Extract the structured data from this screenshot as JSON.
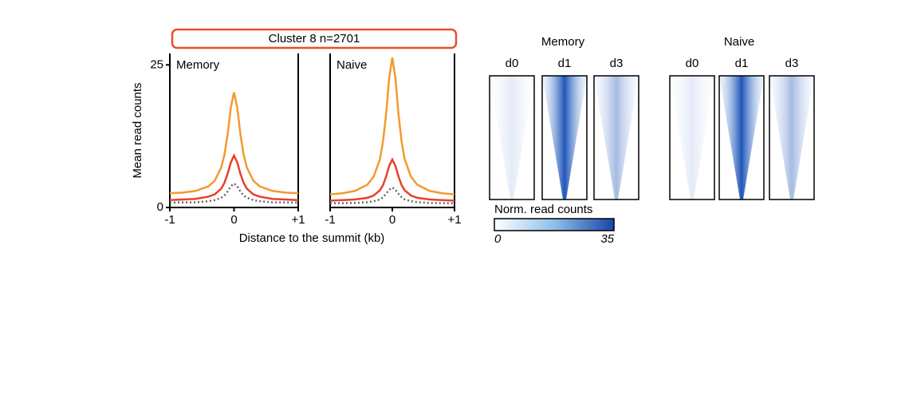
{
  "header": "Cluster 8 n=2701",
  "chart_data": [
    {
      "type": "line",
      "title": "Memory",
      "xlabel": "Distance to the summit (kb)",
      "ylabel": "Mean read counts",
      "xlim": [
        -1,
        1
      ],
      "xticks": [
        -1,
        0,
        {
          "value": 1,
          "label": "+1"
        }
      ],
      "ylim": [
        0,
        27
      ],
      "yticks": [
        0,
        25
      ],
      "x": [
        -1,
        -0.8,
        -0.6,
        -0.4,
        -0.3,
        -0.2,
        -0.15,
        -0.1,
        -0.05,
        0,
        0.05,
        0.1,
        0.15,
        0.2,
        0.3,
        0.4,
        0.6,
        0.8,
        1
      ],
      "series": [
        {
          "color": "#f39a2e",
          "values": [
            2.5,
            2.6,
            2.9,
            3.7,
            4.7,
            7.0,
            9.2,
            12.8,
            17.5,
            20.2,
            17.5,
            12.8,
            9.2,
            7.0,
            4.7,
            3.7,
            2.9,
            2.6,
            2.5
          ]
        },
        {
          "color": "#e8402b",
          "values": [
            1.3,
            1.4,
            1.5,
            1.9,
            2.3,
            3.3,
            4.3,
            5.9,
            7.9,
            9.1,
            7.9,
            5.9,
            4.3,
            3.3,
            2.3,
            1.9,
            1.5,
            1.4,
            1.3
          ]
        },
        {
          "color": "#666666",
          "dash": true,
          "values": [
            0.85,
            0.9,
            0.9,
            1.1,
            1.3,
            1.7,
            2.1,
            2.8,
            3.7,
            4.2,
            3.7,
            2.8,
            2.1,
            1.7,
            1.3,
            1.1,
            0.9,
            0.9,
            0.85
          ]
        }
      ]
    },
    {
      "type": "line",
      "title": "Naive",
      "xlim": [
        -1,
        1
      ],
      "xticks": [
        -1,
        0,
        {
          "value": 1,
          "label": "+1"
        }
      ],
      "ylim": [
        0,
        27
      ],
      "x": [
        -1,
        -0.8,
        -0.6,
        -0.4,
        -0.3,
        -0.2,
        -0.15,
        -0.1,
        -0.05,
        0,
        0.05,
        0.1,
        0.15,
        0.2,
        0.3,
        0.4,
        0.6,
        0.8,
        1
      ],
      "series": [
        {
          "color": "#f39a2e",
          "values": [
            2.3,
            2.5,
            2.9,
            4.0,
            5.4,
            8.4,
            11.5,
            16.3,
            22.7,
            26.3,
            22.7,
            16.3,
            11.5,
            8.4,
            5.4,
            4.0,
            2.9,
            2.5,
            2.3
          ]
        },
        {
          "color": "#e8402b",
          "values": [
            1.2,
            1.3,
            1.4,
            1.7,
            2.1,
            3.0,
            3.9,
            5.4,
            7.3,
            8.4,
            7.3,
            5.4,
            3.9,
            3.0,
            2.1,
            1.7,
            1.4,
            1.3,
            1.2
          ]
        },
        {
          "color": "#666666",
          "dash": true,
          "values": [
            0.74,
            0.76,
            0.8,
            0.93,
            1.1,
            1.4,
            1.8,
            2.4,
            3.1,
            3.5,
            3.1,
            2.4,
            1.8,
            1.4,
            1.1,
            0.93,
            0.8,
            0.76,
            0.74
          ]
        }
      ]
    },
    {
      "type": "heatmap",
      "title": "Memory",
      "columns": [
        "d0",
        "d1",
        "d3"
      ],
      "colorbar": {
        "label": "Norm. read counts",
        "range": [
          0,
          35
        ]
      }
    },
    {
      "type": "heatmap",
      "title": "Naive",
      "columns": [
        "d0",
        "d1",
        "d3"
      ]
    }
  ]
}
